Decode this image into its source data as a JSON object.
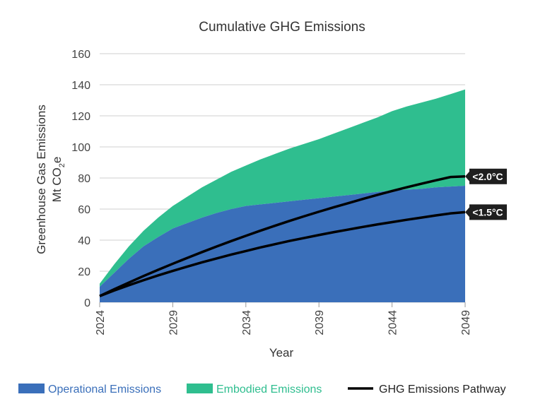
{
  "chart_data": {
    "type": "area",
    "title": "Cumulative GHG Emissions",
    "xlabel": "Year",
    "ylabel_line1": "Greenhouse Gas Emissions",
    "ylabel_line2_prefix": "Mt CO",
    "ylabel_line2_sub": "2",
    "ylabel_line2_suffix": "e",
    "xlim": [
      2024,
      2049
    ],
    "ylim": [
      0,
      160
    ],
    "x_ticks": [
      "2024",
      "2029",
      "2034",
      "2039",
      "2044",
      "2049"
    ],
    "y_ticks": [
      "0",
      "20",
      "40",
      "60",
      "80",
      "100",
      "120",
      "140",
      "160"
    ],
    "grid": true,
    "legend_position": "bottom",
    "x": [
      2024,
      2025,
      2026,
      2027,
      2028,
      2029,
      2030,
      2031,
      2032,
      2033,
      2034,
      2035,
      2036,
      2037,
      2038,
      2039,
      2040,
      2041,
      2042,
      2043,
      2044,
      2045,
      2046,
      2047,
      2048,
      2049
    ],
    "series": [
      {
        "name": "Operational Emissions",
        "kind": "area",
        "color": "#3a6fba",
        "values": [
          10,
          19,
          28,
          36,
          42,
          47.5,
          51,
          54.5,
          57.5,
          60,
          62,
          63,
          64,
          65,
          66,
          67,
          68,
          69,
          70,
          71,
          72,
          72.5,
          73,
          74,
          74.5,
          75
        ]
      },
      {
        "name": "Embodied Emissions",
        "kind": "stacked-area",
        "color": "#2fbe8f",
        "values": [
          2,
          5.5,
          8,
          10,
          12.5,
          14.5,
          17,
          19.5,
          21.5,
          24,
          26,
          29,
          31.5,
          34,
          36,
          38,
          40.5,
          43,
          45.5,
          48,
          51,
          53.5,
          55.5,
          57,
          59.5,
          62
        ]
      },
      {
        "name": "GHG Emissions Pathway",
        "kind": "line",
        "color": "#000000",
        "tag": "<2.0°C",
        "values": [
          4,
          8.4,
          12.7,
          16.9,
          20.9,
          24.8,
          28.6,
          32.3,
          35.9,
          39.4,
          42.8,
          46.1,
          49.3,
          52.4,
          55.4,
          58.3,
          61.1,
          63.8,
          66.5,
          69.1,
          71.6,
          74,
          76.3,
          78.5,
          80.6,
          81
        ]
      },
      {
        "name": "GHG Emissions Pathway",
        "kind": "line",
        "color": "#000000",
        "tag": "<1.5°C",
        "values": [
          4,
          7.6,
          11,
          14.2,
          17.3,
          20.2,
          23,
          25.7,
          28.2,
          30.7,
          33,
          35.3,
          37.4,
          39.5,
          41.4,
          43.3,
          45.1,
          46.8,
          48.5,
          50.1,
          51.6,
          53.1,
          54.5,
          55.9,
          57.2,
          58
        ]
      }
    ],
    "legend": [
      {
        "label": "Operational Emissions",
        "swatch": "box",
        "color": "#3a6fba",
        "text_color": "#3a6fba"
      },
      {
        "label": "Embodied Emissions",
        "swatch": "box",
        "color": "#2fbe8f",
        "text_color": "#2fbe8f"
      },
      {
        "label": "GHG Emissions Pathway",
        "swatch": "line",
        "color": "#000000",
        "text_color": "#222222"
      }
    ]
  }
}
